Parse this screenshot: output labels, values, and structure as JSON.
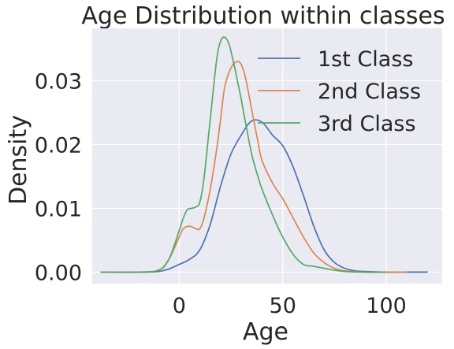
{
  "chart_data": {
    "type": "line",
    "title": "Age Distribution within classes",
    "xlabel": "Age",
    "ylabel": "Density",
    "xlim": [
      -42,
      127
    ],
    "ylim": [
      -0.0018,
      0.0382
    ],
    "xticks": [
      0,
      50,
      100
    ],
    "xtick_labels": [
      "0",
      "50",
      "100"
    ],
    "yticks": [
      0.0,
      0.01,
      0.02,
      0.03
    ],
    "ytick_labels": [
      "0.00",
      "0.01",
      "0.02",
      "0.03"
    ],
    "grid": true,
    "legend_position": "top-right",
    "background": "#eaeaf2",
    "series": [
      {
        "name": "1st Class",
        "color": "#4c72b0",
        "x": [
          -38,
          -20,
          -10,
          -5,
          0,
          5,
          10,
          15,
          20,
          25,
          30,
          35,
          40,
          45,
          50,
          55,
          60,
          65,
          70,
          75,
          80,
          85,
          90,
          100,
          110,
          120
        ],
        "y": [
          0,
          0,
          0.0001,
          0.0005,
          0.0012,
          0.002,
          0.0035,
          0.0075,
          0.0135,
          0.0185,
          0.0215,
          0.0237,
          0.0235,
          0.0215,
          0.0198,
          0.0165,
          0.012,
          0.0072,
          0.0035,
          0.0015,
          0.0006,
          0.0002,
          0.0001,
          0,
          0,
          0
        ]
      },
      {
        "name": "2nd Class",
        "color": "#dd8452",
        "x": [
          -38,
          -20,
          -10,
          -5,
          0,
          2,
          5,
          8,
          10,
          12,
          15,
          18,
          20,
          22,
          25,
          28,
          30,
          32,
          35,
          38,
          40,
          45,
          50,
          55,
          60,
          65,
          70,
          75,
          80,
          90,
          100,
          110
        ],
        "y": [
          0,
          0,
          0.0003,
          0.002,
          0.0055,
          0.0068,
          0.0072,
          0.0068,
          0.0068,
          0.0085,
          0.013,
          0.019,
          0.024,
          0.029,
          0.032,
          0.033,
          0.0325,
          0.0305,
          0.0255,
          0.0205,
          0.0175,
          0.014,
          0.0115,
          0.0085,
          0.0055,
          0.003,
          0.0015,
          0.0006,
          0.0002,
          0,
          0,
          0
        ]
      },
      {
        "name": "3rd Class",
        "color": "#55a868",
        "x": [
          -38,
          -20,
          -10,
          -5,
          0,
          2,
          4,
          6,
          8,
          10,
          12,
          15,
          18,
          20,
          22,
          24,
          26,
          28,
          30,
          32,
          35,
          38,
          40,
          45,
          50,
          55,
          60,
          65,
          70,
          75,
          80,
          90,
          100
        ],
        "y": [
          0,
          0,
          0.0003,
          0.002,
          0.0065,
          0.0085,
          0.0098,
          0.01,
          0.0102,
          0.011,
          0.0148,
          0.024,
          0.033,
          0.0362,
          0.0368,
          0.0358,
          0.0332,
          0.0302,
          0.027,
          0.0235,
          0.0185,
          0.015,
          0.013,
          0.009,
          0.0055,
          0.0028,
          0.0012,
          0.0009,
          0.0006,
          0.0003,
          0.0001,
          0,
          0
        ]
      }
    ]
  }
}
